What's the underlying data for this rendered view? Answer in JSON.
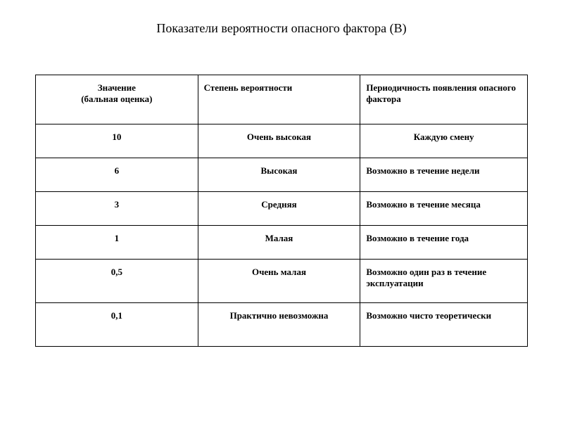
{
  "title": "Показатели вероятности опасного фактора (В)",
  "table": {
    "headers": {
      "col1_line1": "Значение",
      "col1_line2": "(бальная оценка)",
      "col2": "Степень вероятности",
      "col3": "Периодичность появления опасного фактора"
    },
    "rows": [
      {
        "value": "10",
        "degree": "Очень высокая",
        "period": "Каждую смену",
        "tall": false,
        "period_center": true
      },
      {
        "value": "6",
        "degree": "Высокая",
        "period": "Возможно в течение недели",
        "tall": false,
        "period_center": false
      },
      {
        "value": "3",
        "degree": "Средняя",
        "period": "Возможно в течение месяца",
        "tall": false,
        "period_center": false
      },
      {
        "value": "1",
        "degree": "Малая",
        "period": "Возможно в течение года",
        "tall": false,
        "period_center": false
      },
      {
        "value": "0,5",
        "degree": "Очень малая",
        "period": "Возможно один раз в течение эксплуатации",
        "tall": true,
        "period_center": false
      },
      {
        "value": "0,1",
        "degree": "Практично невозможна",
        "period": "Возможно чисто теоретически",
        "tall": true,
        "period_center": false
      }
    ]
  },
  "style": {
    "background_color": "#ffffff",
    "text_color": "#000000",
    "border_color": "#000000",
    "title_fontsize": 18,
    "cell_fontsize": 13,
    "font_family": "Times New Roman"
  }
}
